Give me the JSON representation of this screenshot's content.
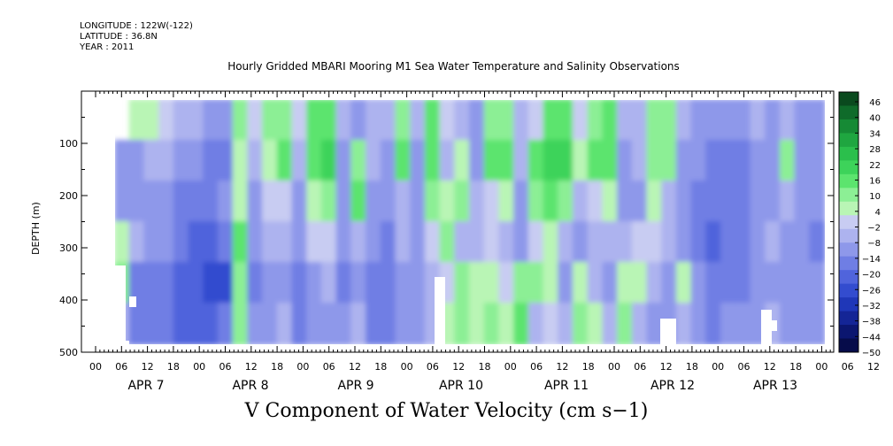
{
  "header": {
    "lines": [
      "LONGITUDE : 122W(-122)",
      "LATITUDE : 36.8N",
      "YEAR : 2011"
    ]
  },
  "chart_data": {
    "type": "heatmap",
    "title": "Hourly Gridded MBARI Mooring M1 Sea Water Temperature and Salinity Observations",
    "bottom_title": "V Component of Water Velocity (cm s−1)",
    "ylabel": "DEPTH (m)",
    "ylim": [
      500,
      0
    ],
    "yticks": [
      100,
      200,
      300,
      400,
      500
    ],
    "ytick_labels": [
      "100",
      "200",
      "300",
      "400",
      "500"
    ],
    "x_hour_labels": [
      "00",
      "06",
      "12",
      "18",
      "00",
      "06",
      "12",
      "18",
      "00",
      "06",
      "12",
      "18",
      "00",
      "06",
      "12",
      "18",
      "00",
      "06",
      "12",
      "18",
      "00",
      "06",
      "12",
      "18",
      "00",
      "06",
      "12",
      "18",
      "00",
      "06",
      "12",
      "18"
    ],
    "x_day_labels": [
      "APR  7",
      "APR  8",
      "APR  9",
      "APR 10",
      "APR 11",
      "APR 12",
      "APR 13"
    ],
    "colorbar": {
      "labels": [
        "46",
        "40",
        "34",
        "28",
        "22",
        "16",
        "10",
        "4",
        "−2",
        "−8",
        "−14",
        "−20",
        "−26",
        "−32",
        "−38",
        "−44",
        "−50"
      ],
      "colors": [
        "#0a4a1e",
        "#0f6b2a",
        "#168a35",
        "#1fa640",
        "#2bbf4c",
        "#3dd35a",
        "#5ce46e",
        "#8cef95",
        "#b9f5b5",
        "#c8ccf2",
        "#adb3ef",
        "#8e98ea",
        "#6f7ee4",
        "#5064dc",
        "#334ccf",
        "#1f37b8",
        "#142596",
        "#0b1670",
        "#060c4a"
      ]
    },
    "grid": false,
    "columns": [
      [
        null,
        -12,
        -10,
        6,
        8,
        -6
      ],
      [
        6,
        -10,
        -14,
        -8,
        -16,
        -20
      ],
      [
        4,
        -8,
        -12,
        -10,
        -18,
        -20
      ],
      [
        -2,
        -6,
        -10,
        -12,
        -16,
        -18
      ],
      [
        -6,
        -12,
        -16,
        -20,
        -22,
        -24
      ],
      [
        -8,
        -14,
        -18,
        -22,
        -24,
        -22
      ],
      [
        -10,
        -16,
        -20,
        -24,
        -26,
        -22
      ],
      [
        -12,
        -18,
        -14,
        -16,
        -26,
        -20
      ],
      [
        8,
        4,
        6,
        12,
        10,
        8
      ],
      [
        -4,
        -8,
        -10,
        -12,
        -16,
        -14
      ],
      [
        8,
        6,
        -4,
        -8,
        -12,
        -10
      ],
      [
        10,
        12,
        -2,
        -6,
        -10,
        -8
      ],
      [
        -2,
        -6,
        -12,
        -14,
        -18,
        -16
      ],
      [
        12,
        14,
        6,
        -4,
        -10,
        -14
      ],
      [
        16,
        18,
        10,
        -2,
        -8,
        -12
      ],
      [
        -8,
        -12,
        -10,
        -14,
        -16,
        -12
      ],
      [
        -10,
        10,
        14,
        -6,
        -10,
        -8
      ],
      [
        -6,
        -8,
        -12,
        -14,
        -18,
        -16
      ],
      [
        -8,
        -10,
        -12,
        -16,
        -20,
        -18
      ],
      [
        10,
        14,
        -6,
        -8,
        -12,
        -10
      ],
      [
        -6,
        -10,
        -12,
        -14,
        -12,
        -10
      ],
      [
        12,
        16,
        10,
        -2,
        -6,
        -8
      ],
      [
        -4,
        -8,
        4,
        8,
        -4,
        6
      ],
      [
        -6,
        6,
        10,
        -6,
        8,
        10
      ],
      [
        -10,
        -12,
        -8,
        -6,
        4,
        6
      ],
      [
        8,
        12,
        -2,
        -4,
        6,
        8
      ],
      [
        10,
        14,
        4,
        -6,
        -4,
        6
      ],
      [
        -6,
        -8,
        -10,
        -12,
        10,
        12
      ],
      [
        -4,
        12,
        8,
        -2,
        8,
        -6
      ],
      [
        16,
        22,
        14,
        6,
        4,
        -4
      ],
      [
        14,
        18,
        10,
        -6,
        -10,
        -8
      ],
      [
        -4,
        4,
        -8,
        -10,
        6,
        8
      ],
      [
        10,
        12,
        -4,
        -6,
        -8,
        6
      ],
      [
        12,
        14,
        6,
        -6,
        -10,
        -8
      ],
      [
        -8,
        -10,
        -12,
        -6,
        6,
        8
      ],
      [
        -6,
        -8,
        -10,
        -4,
        6,
        -6
      ],
      [
        8,
        10,
        6,
        -4,
        -8,
        -10
      ],
      [
        10,
        8,
        -6,
        -8,
        -10,
        -12
      ],
      [
        -8,
        -12,
        -14,
        -10,
        6,
        -8
      ],
      [
        -10,
        -14,
        -16,
        -18,
        -14,
        -12
      ],
      [
        -12,
        -18,
        -20,
        -22,
        -18,
        -16
      ],
      [
        -14,
        -16,
        -18,
        -20,
        -16,
        -14
      ],
      [
        -12,
        -16,
        -18,
        -20,
        -16,
        -12
      ],
      [
        -8,
        -14,
        -10,
        -14,
        -12,
        -10
      ],
      [
        -10,
        -12,
        -10,
        -8,
        -10,
        -8
      ],
      [
        -6,
        10,
        -8,
        -10,
        -12,
        -10
      ],
      [
        -12,
        -14,
        -10,
        -12,
        -14,
        -10
      ],
      [
        -10,
        -12,
        -14,
        -16,
        -12,
        -10
      ]
    ]
  }
}
